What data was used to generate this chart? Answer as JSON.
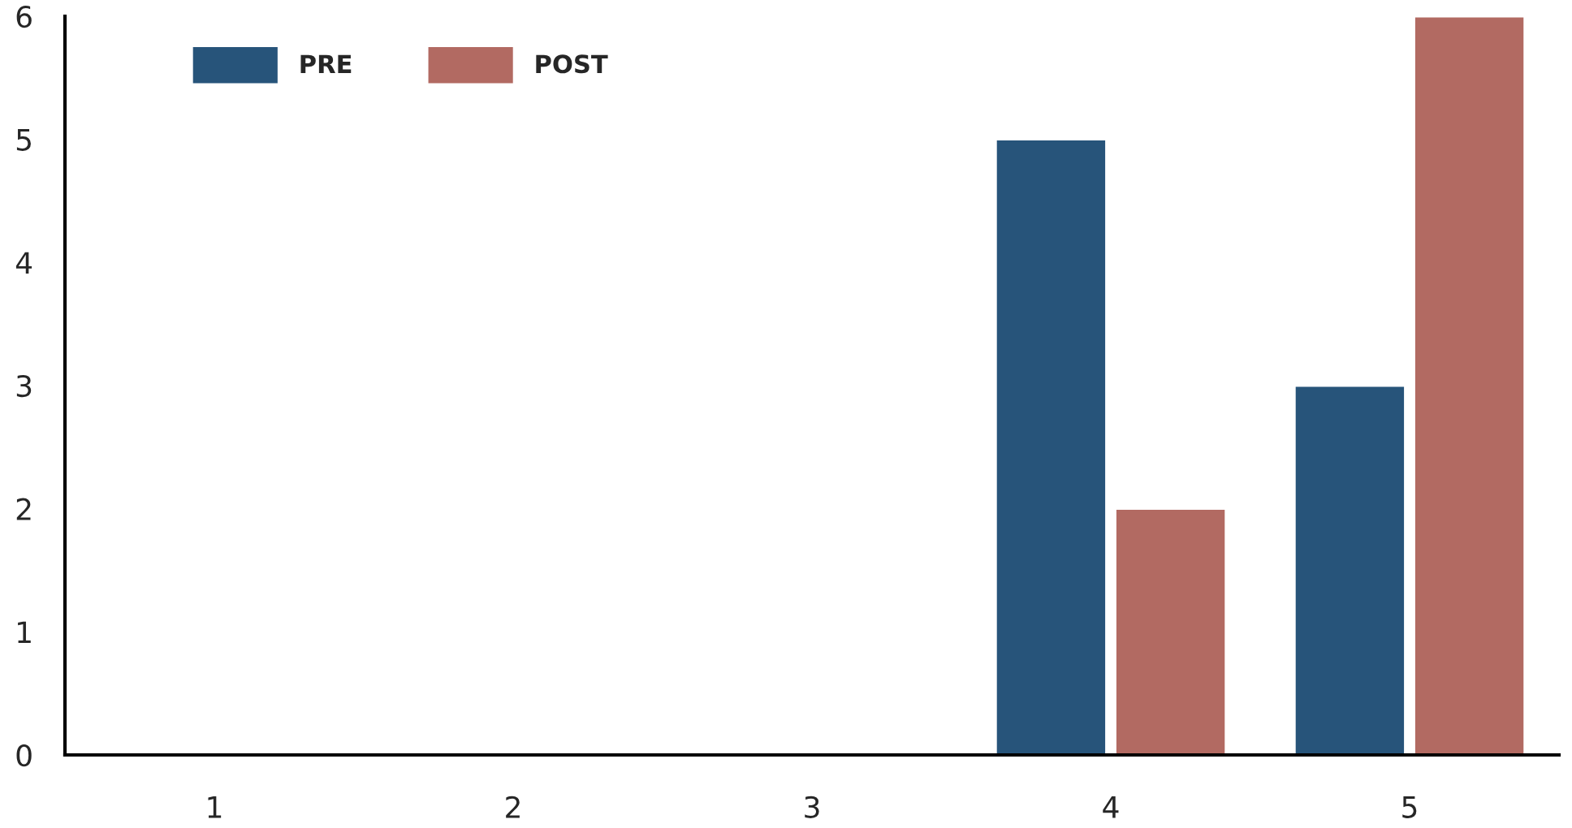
{
  "chart_data": {
    "type": "bar",
    "categories": [
      "1",
      "2",
      "3",
      "4",
      "5"
    ],
    "series": [
      {
        "name": "PRE",
        "color": "#27547a",
        "values": [
          null,
          null,
          null,
          5,
          3
        ]
      },
      {
        "name": "POST",
        "color": "#b26a62",
        "values": [
          null,
          null,
          null,
          2,
          6
        ]
      }
    ],
    "ylim": [
      0,
      6
    ],
    "yticks": [
      0,
      1,
      2,
      3,
      4,
      5,
      6
    ],
    "grid": false,
    "legend": "top left"
  }
}
